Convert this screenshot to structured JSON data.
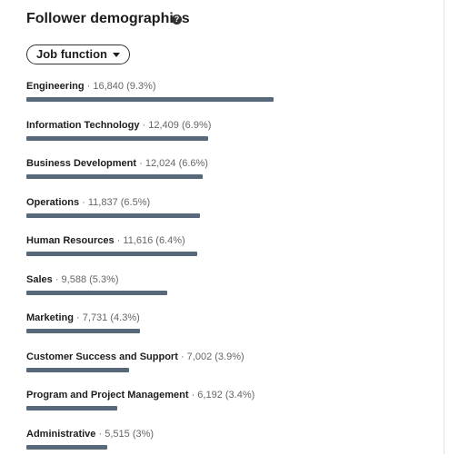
{
  "title": "Follower demographics",
  "dropdown": "Job function",
  "separator": "·",
  "rows": [
    {
      "label": "Engineering",
      "value": 16840,
      "value_label": "16,840",
      "share": 9.3,
      "share_label": "(9.3%)"
    },
    {
      "label": "Information Technology",
      "value": 12409,
      "value_label": "12,409",
      "share": 6.9,
      "share_label": "(6.9%)"
    },
    {
      "label": "Business Development",
      "value": 12024,
      "value_label": "12,024",
      "share": 6.6,
      "share_label": "(6.6%)"
    },
    {
      "label": "Operations",
      "value": 11837,
      "value_label": "11,837",
      "share": 6.5,
      "share_label": "(6.5%)"
    },
    {
      "label": "Human Resources",
      "value": 11616,
      "value_label": "11,616",
      "share": 6.4,
      "share_label": "(6.4%)"
    },
    {
      "label": "Sales",
      "value": 9588,
      "value_label": "9,588",
      "share": 5.3,
      "share_label": "(5.3%)"
    },
    {
      "label": "Marketing",
      "value": 7731,
      "value_label": "7,731",
      "share": 4.3,
      "share_label": "(4.3%)"
    },
    {
      "label": "Customer Success and Support",
      "value": 7002,
      "value_label": "7,002",
      "share": 3.9,
      "share_label": "(3.9%)"
    },
    {
      "label": "Program and Project Management",
      "value": 6192,
      "value_label": "6,192",
      "share": 3.4,
      "share_label": "(3.4%)"
    },
    {
      "label": "Administrative",
      "value": 5515,
      "value_label": "5,515",
      "share": 3,
      "share_label": "(3%)"
    }
  ]
}
